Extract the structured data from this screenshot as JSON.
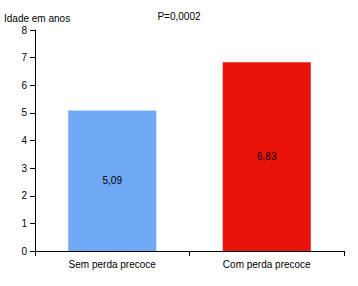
{
  "chart_data": {
    "type": "bar",
    "title": "P=0,0002",
    "y_label": "Idade em anos",
    "categories": [
      "Sem perda precoce",
      "Com perda precoce"
    ],
    "values": [
      5.09,
      6.83
    ],
    "value_labels": [
      "5,09",
      "6,83"
    ],
    "colors": [
      "#6fa8f4",
      "#e8140c"
    ],
    "ylim": [
      0,
      8
    ],
    "yticks": [
      0,
      1,
      2,
      3,
      4,
      5,
      6,
      7,
      8
    ],
    "grid": false,
    "data_labels": true
  }
}
